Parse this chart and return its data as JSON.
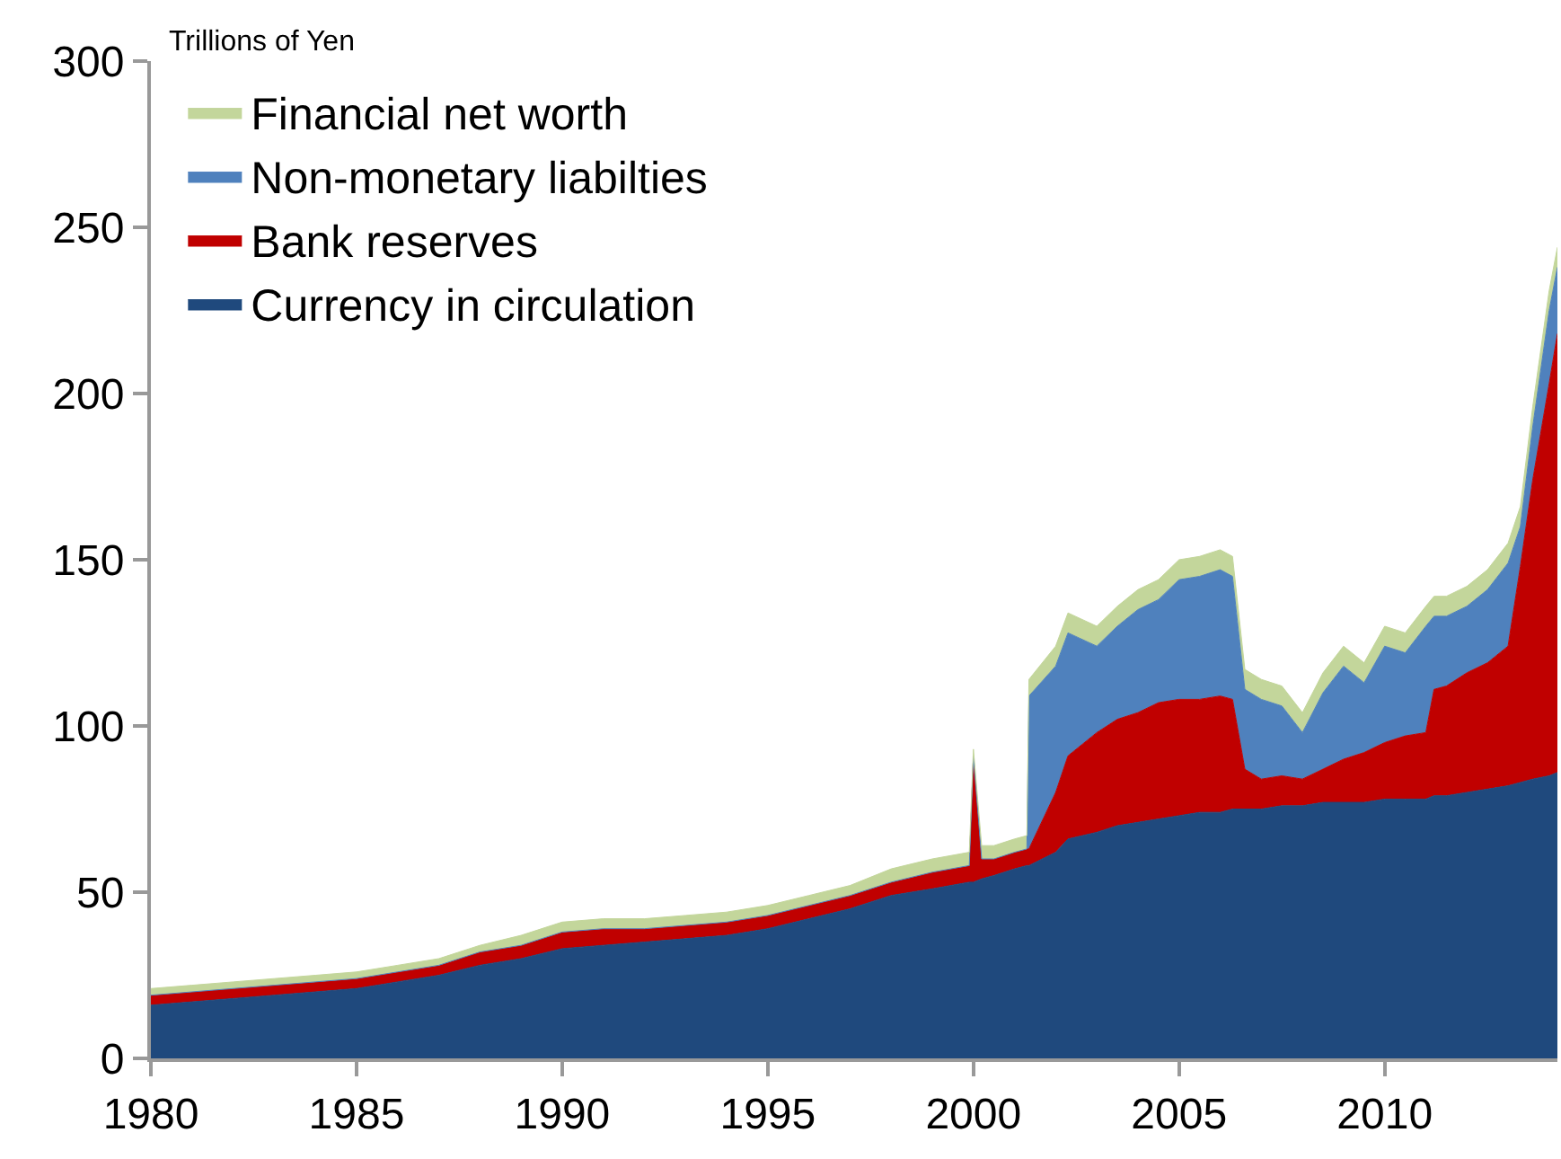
{
  "chart_data": {
    "type": "area",
    "stacked": true,
    "ylabel": "Trillions of Yen",
    "x": [
      1980,
      1981,
      1982,
      1983,
      1984,
      1985,
      1986,
      1987,
      1988,
      1989,
      1990,
      1991,
      1992,
      1993,
      1994,
      1995,
      1996,
      1997,
      1998,
      1999,
      1999.9,
      2000.0,
      2000.2,
      2000.5,
      2001.0,
      2001.3,
      2001.35,
      2002.0,
      2002.3,
      2003.0,
      2003.5,
      2004.0,
      2004.5,
      2005.0,
      2005.5,
      2006.0,
      2006.3,
      2006.6,
      2007.0,
      2007.5,
      2008.0,
      2008.5,
      2009.0,
      2009.5,
      2010.0,
      2010.5,
      2011.0,
      2011.2,
      2011.5,
      2012.0,
      2012.5,
      2013.0,
      2013.3,
      2013.6,
      2014.0,
      2014.2
    ],
    "series": [
      {
        "name": "Currency in circulation",
        "color": "#1f497d",
        "values": [
          16,
          17,
          18,
          19,
          20,
          21,
          23,
          25,
          28,
          30,
          33,
          34,
          35,
          36,
          37,
          39,
          42,
          45,
          49,
          51,
          53,
          53,
          54,
          55,
          57,
          58,
          58,
          62,
          66,
          68,
          70,
          71,
          72,
          73,
          74,
          74,
          75,
          75,
          75,
          76,
          76,
          77,
          77,
          77,
          78,
          78,
          78,
          79,
          79,
          80,
          81,
          82,
          83,
          84,
          85,
          86
        ]
      },
      {
        "name": "Bank reserves",
        "color": "#c00000",
        "values": [
          3,
          3,
          3,
          3,
          3,
          3,
          3,
          3,
          4,
          4,
          5,
          5,
          4,
          4,
          4,
          4,
          4,
          4,
          4,
          5,
          5,
          38,
          6,
          5,
          5,
          5,
          5,
          18,
          25,
          30,
          32,
          33,
          35,
          35,
          34,
          35,
          33,
          12,
          9,
          9,
          8,
          10,
          13,
          15,
          17,
          19,
          20,
          32,
          33,
          36,
          38,
          42,
          65,
          90,
          118,
          132
        ]
      },
      {
        "name": "Non-monetary liabilties",
        "color": "#4f81bd",
        "values": [
          0,
          0,
          0,
          0,
          0,
          0,
          0,
          0,
          0,
          0,
          0,
          0,
          0,
          0,
          0,
          0,
          0,
          0,
          0,
          0,
          0,
          0,
          0,
          0,
          0,
          0,
          46,
          38,
          37,
          26,
          28,
          31,
          31,
          36,
          37,
          38,
          37,
          24,
          24,
          21,
          14,
          23,
          28,
          21,
          29,
          25,
          32,
          22,
          21,
          20,
          22,
          25,
          12,
          16,
          22,
          20
        ]
      },
      {
        "name": "Financial net worth",
        "color": "#c3d69b",
        "values": [
          2,
          2,
          2,
          2,
          2,
          2,
          2,
          2,
          2,
          3,
          3,
          3,
          3,
          3,
          3,
          3,
          3,
          3,
          4,
          4,
          4,
          2,
          4,
          4,
          4,
          4,
          5,
          6,
          6,
          6,
          6,
          6,
          6,
          6,
          6,
          6,
          6,
          6,
          6,
          6,
          6,
          6,
          6,
          6,
          6,
          6,
          6,
          6,
          6,
          6,
          6,
          6,
          6,
          6,
          6,
          6
        ]
      }
    ],
    "xlim": [
      1980,
      2014.2
    ],
    "xticks": [
      1980,
      1985,
      1990,
      1995,
      2000,
      2005,
      2010
    ],
    "ylim": [
      0,
      300
    ],
    "yticks": [
      0,
      50,
      100,
      150,
      200,
      250,
      300
    ],
    "legend": "top left"
  }
}
